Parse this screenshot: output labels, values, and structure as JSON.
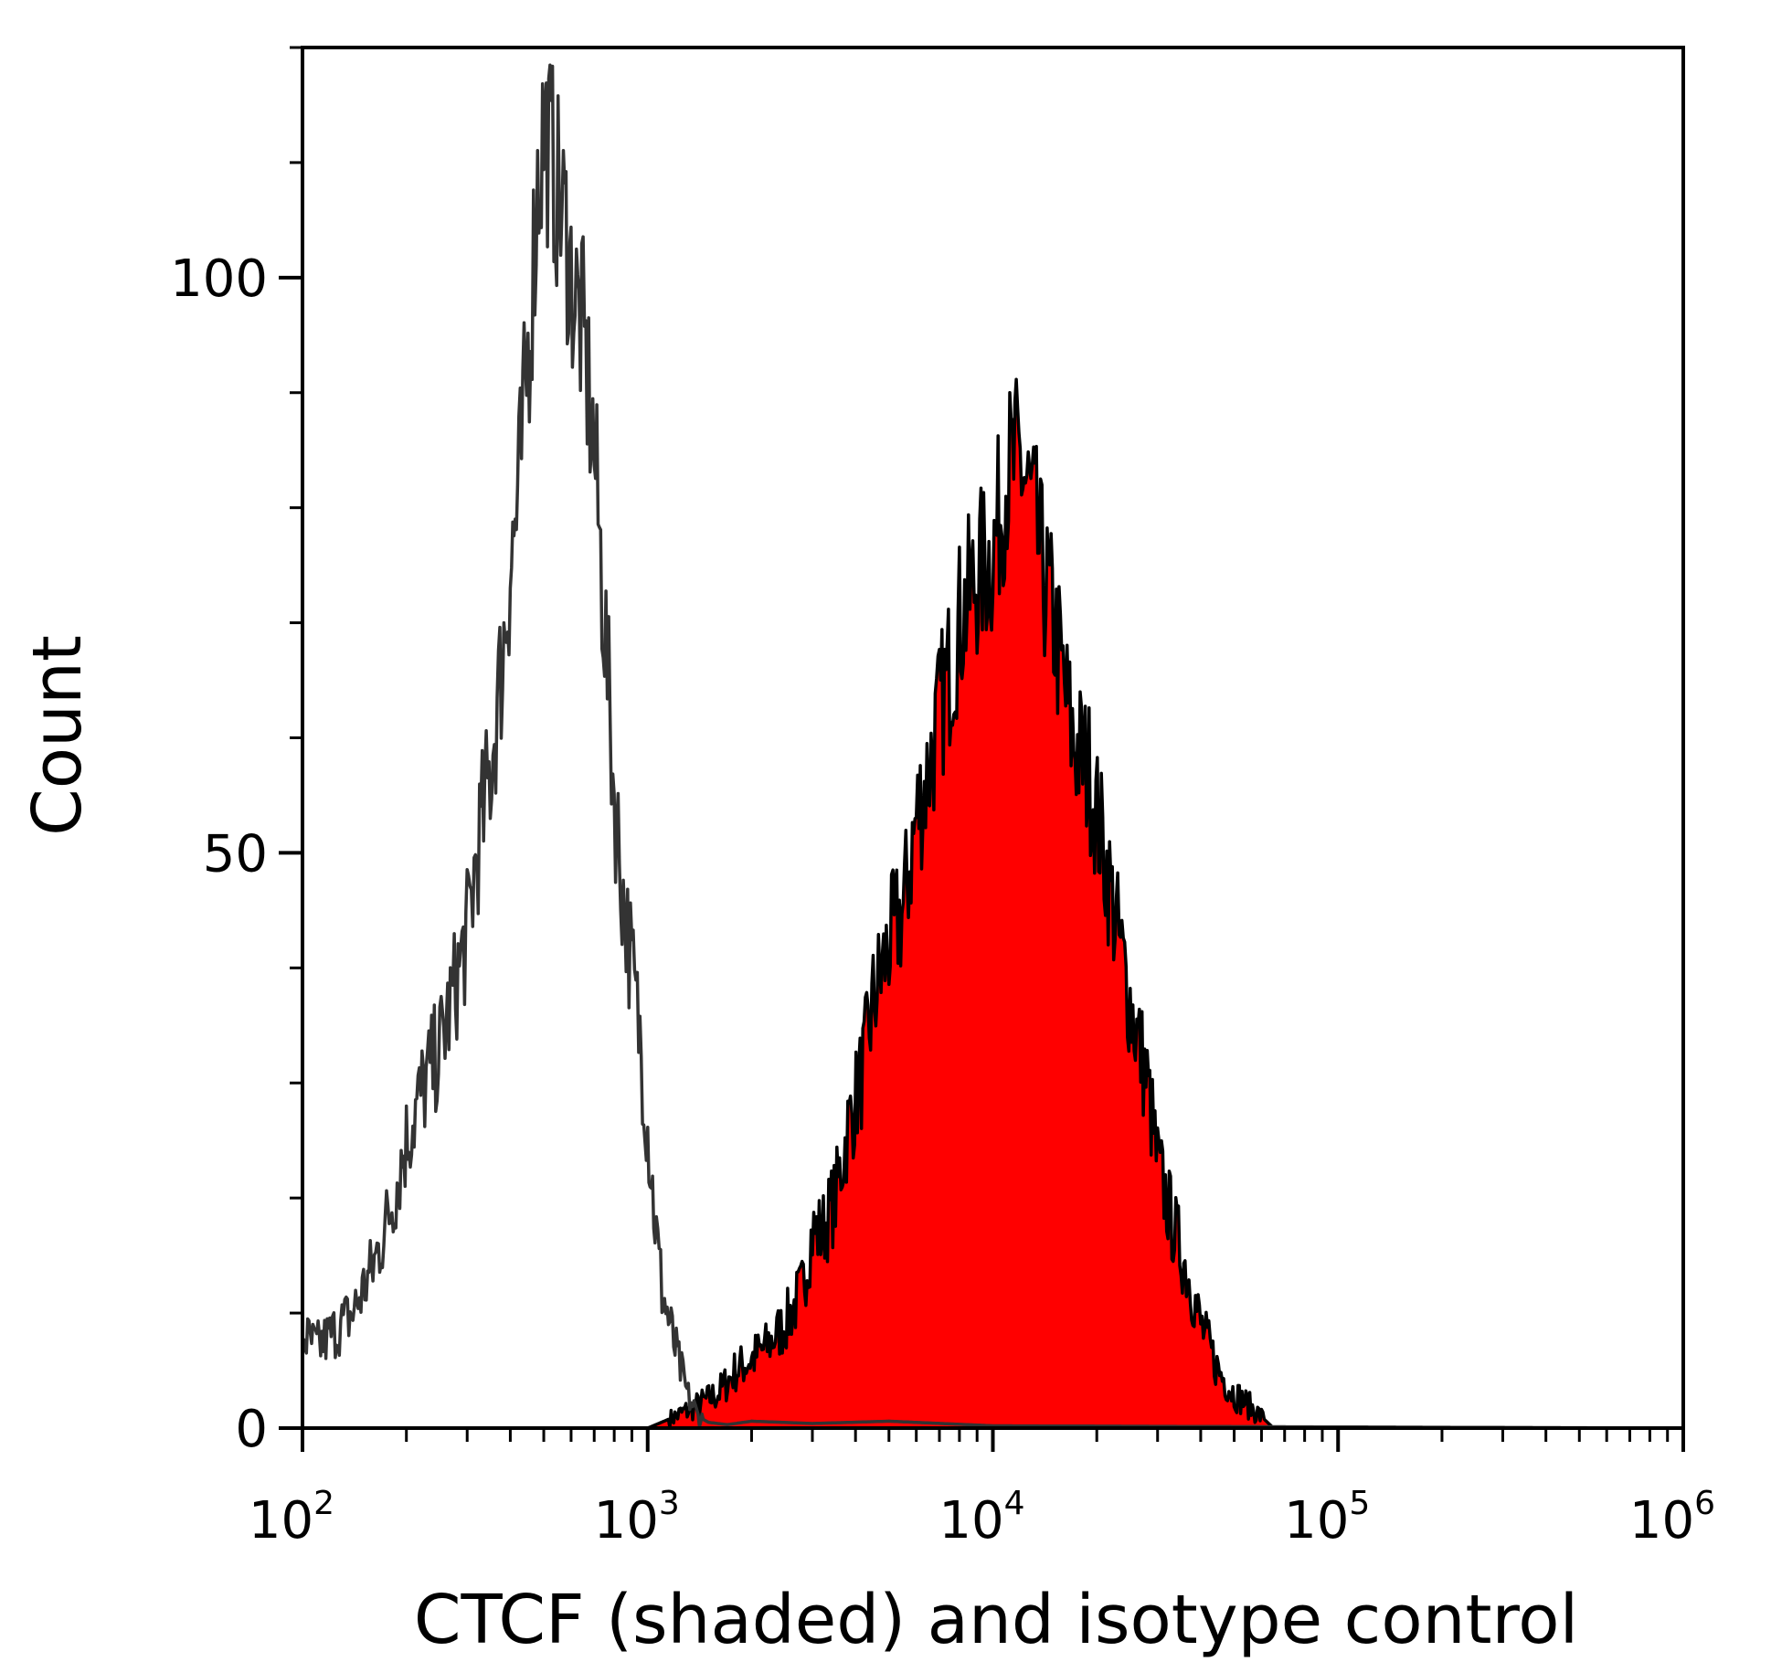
{
  "chart_data": {
    "type": "area",
    "title": "",
    "xlabel": "CTCF (shaded) and isotype control",
    "ylabel": "Count",
    "xscale": "log",
    "xlim": [
      100,
      1000000
    ],
    "ylim": [
      0,
      120
    ],
    "grid": false,
    "x_major_ticks": [
      {
        "value": 100,
        "base": "10",
        "exp": "2"
      },
      {
        "value": 1000,
        "base": "10",
        "exp": "3"
      },
      {
        "value": 10000,
        "base": "10",
        "exp": "4"
      },
      {
        "value": 100000,
        "base": "10",
        "exp": "5"
      },
      {
        "value": 1000000,
        "base": "10",
        "exp": "6"
      }
    ],
    "y_major_ticks": [
      {
        "value": 0,
        "label": "0"
      },
      {
        "value": 50,
        "label": "50"
      },
      {
        "value": 100,
        "label": "100"
      }
    ],
    "y_minor_step": 10,
    "colors": {
      "axis": "#000000",
      "shaded_fill": "#ff0000",
      "shaded_line": "#000000",
      "isotype_line": "#333333"
    },
    "series": [
      {
        "name": "CTCF (shaded)",
        "style": "filled",
        "points": [
          [
            100,
            0
          ],
          [
            1000,
            0
          ],
          [
            1200,
            1
          ],
          [
            1400,
            2
          ],
          [
            1600,
            3
          ],
          [
            1800,
            5
          ],
          [
            2000,
            6
          ],
          [
            2200,
            7
          ],
          [
            2500,
            9
          ],
          [
            2800,
            12
          ],
          [
            3000,
            17
          ],
          [
            3200,
            17
          ],
          [
            3500,
            20
          ],
          [
            3800,
            26
          ],
          [
            4200,
            31
          ],
          [
            4500,
            37
          ],
          [
            5000,
            42
          ],
          [
            5500,
            45
          ],
          [
            6000,
            53
          ],
          [
            6500,
            57
          ],
          [
            7000,
            62
          ],
          [
            7500,
            66
          ],
          [
            8000,
            70
          ],
          [
            8500,
            72
          ],
          [
            9000,
            74
          ],
          [
            10000,
            76
          ],
          [
            11000,
            83
          ],
          [
            12000,
            84
          ],
          [
            13000,
            80
          ],
          [
            14000,
            74
          ],
          [
            15000,
            70
          ],
          [
            17000,
            60
          ],
          [
            19000,
            57
          ],
          [
            21000,
            50
          ],
          [
            23000,
            43
          ],
          [
            25000,
            37
          ],
          [
            28000,
            30
          ],
          [
            30000,
            23
          ],
          [
            33000,
            18
          ],
          [
            37000,
            13
          ],
          [
            40000,
            9
          ],
          [
            45000,
            5
          ],
          [
            50000,
            3
          ],
          [
            55000,
            2
          ],
          [
            60000,
            1
          ],
          [
            65000,
            0
          ],
          [
            1000000,
            0
          ]
        ]
      },
      {
        "name": "isotype control",
        "style": "line",
        "points": [
          [
            100,
            8
          ],
          [
            110,
            7
          ],
          [
            120,
            8
          ],
          [
            140,
            10
          ],
          [
            160,
            14
          ],
          [
            180,
            19
          ],
          [
            200,
            25
          ],
          [
            220,
            29
          ],
          [
            250,
            33
          ],
          [
            280,
            39
          ],
          [
            300,
            43
          ],
          [
            320,
            50
          ],
          [
            350,
            57
          ],
          [
            380,
            67
          ],
          [
            400,
            75
          ],
          [
            420,
            80
          ],
          [
            450,
            93
          ],
          [
            480,
            108
          ],
          [
            500,
            113
          ],
          [
            530,
            110
          ],
          [
            550,
            107
          ],
          [
            580,
            104
          ],
          [
            600,
            100
          ],
          [
            650,
            95
          ],
          [
            700,
            85
          ],
          [
            750,
            70
          ],
          [
            800,
            55
          ],
          [
            850,
            46
          ],
          [
            900,
            40
          ],
          [
            950,
            34
          ],
          [
            1000,
            26
          ],
          [
            1050,
            18
          ],
          [
            1100,
            12
          ],
          [
            1200,
            7
          ],
          [
            1300,
            3
          ],
          [
            1400,
            1
          ],
          [
            1500,
            0.5
          ],
          [
            1700,
            0.3
          ],
          [
            2000,
            0.6
          ],
          [
            3000,
            0.4
          ],
          [
            5000,
            0.6
          ],
          [
            10000,
            0.2
          ],
          [
            1000000,
            0
          ]
        ]
      }
    ]
  }
}
